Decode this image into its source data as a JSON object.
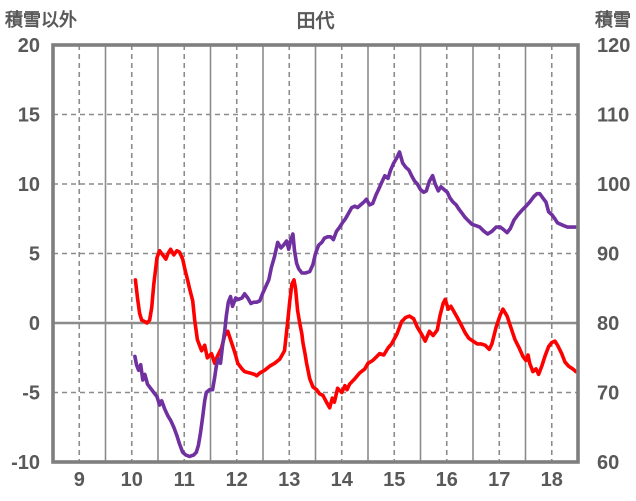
{
  "header": {
    "title": "田代",
    "left_axis_title": "積雪以外",
    "right_axis_title": "積雪"
  },
  "colors": {
    "non_snow_line": "#ff0000",
    "snow_line": "#7030a0",
    "grid": "#8c8c8c",
    "border": "#7f7f7f",
    "text": "#595959",
    "background": "#ffffff"
  },
  "chart_data": {
    "type": "line",
    "title": "田代",
    "x_axis": {
      "min": 8.5,
      "max": 18.5,
      "tick_labels": [
        "9",
        "10",
        "11",
        "12",
        "13",
        "14",
        "15",
        "16",
        "17",
        "18"
      ],
      "tick_positions": [
        9,
        10,
        11,
        12,
        13,
        14,
        15,
        16,
        17,
        18
      ],
      "solid_gridlines": [
        9.5,
        10.5,
        11.5,
        12.5,
        13.5,
        14.5,
        15.5,
        16.5,
        17.5
      ],
      "dashed_gridlines": [
        9,
        10,
        11,
        12,
        13,
        14,
        15,
        16,
        17,
        18
      ]
    },
    "left_axis": {
      "label": "積雪以外",
      "min": -10,
      "max": 20,
      "ticks": [
        20,
        15,
        10,
        5,
        0,
        -5,
        -10
      ],
      "dashed_gridlines": [
        15,
        10,
        5,
        -5
      ],
      "solid_gridlines": [
        0
      ]
    },
    "right_axis": {
      "label": "積雪",
      "min": 60,
      "max": 120,
      "ticks": [
        120,
        110,
        100,
        90,
        80,
        70,
        60
      ]
    },
    "grid": true,
    "legend": "none",
    "series": [
      {
        "name": "積雪以外",
        "axis": "left",
        "color": "#ff0000",
        "points": [
          [
            10.07,
            3.1
          ],
          [
            10.11,
            1.8
          ],
          [
            10.15,
            0.7
          ],
          [
            10.19,
            0.2
          ],
          [
            10.25,
            0.1
          ],
          [
            10.29,
            0.0
          ],
          [
            10.34,
            0.2
          ],
          [
            10.38,
            1.1
          ],
          [
            10.42,
            2.8
          ],
          [
            10.48,
            4.7
          ],
          [
            10.53,
            5.2
          ],
          [
            10.59,
            4.9
          ],
          [
            10.65,
            4.6
          ],
          [
            10.69,
            5.0
          ],
          [
            10.74,
            5.3
          ],
          [
            10.8,
            4.9
          ],
          [
            10.86,
            5.2
          ],
          [
            10.91,
            5.1
          ],
          [
            10.97,
            4.6
          ],
          [
            11.01,
            3.9
          ],
          [
            11.07,
            3.0
          ],
          [
            11.1,
            2.5
          ],
          [
            11.16,
            1.6
          ],
          [
            11.2,
            0.2
          ],
          [
            11.25,
            -1.2
          ],
          [
            11.33,
            -2.0
          ],
          [
            11.39,
            -1.6
          ],
          [
            11.44,
            -2.5
          ],
          [
            11.52,
            -2.2
          ],
          [
            11.58,
            -2.9
          ],
          [
            11.63,
            -2.4
          ],
          [
            11.71,
            -1.8
          ],
          [
            11.77,
            -0.9
          ],
          [
            11.83,
            -0.6
          ],
          [
            11.9,
            -1.4
          ],
          [
            11.96,
            -2.1
          ],
          [
            12.02,
            -2.9
          ],
          [
            12.1,
            -3.3
          ],
          [
            12.15,
            -3.5
          ],
          [
            12.25,
            -3.6
          ],
          [
            12.34,
            -3.7
          ],
          [
            12.38,
            -3.8
          ],
          [
            12.44,
            -3.6
          ],
          [
            12.53,
            -3.4
          ],
          [
            12.63,
            -3.1
          ],
          [
            12.72,
            -2.9
          ],
          [
            12.82,
            -2.6
          ],
          [
            12.91,
            -2.0
          ],
          [
            12.97,
            0.1
          ],
          [
            13.01,
            1.6
          ],
          [
            13.05,
            2.8
          ],
          [
            13.09,
            3.1
          ],
          [
            13.12,
            2.5
          ],
          [
            13.16,
            0.9
          ],
          [
            13.2,
            0.0
          ],
          [
            13.24,
            -0.8
          ],
          [
            13.26,
            -1.4
          ],
          [
            13.3,
            -2.2
          ],
          [
            13.33,
            -2.9
          ],
          [
            13.39,
            -4.0
          ],
          [
            13.45,
            -4.6
          ],
          [
            13.52,
            -4.8
          ],
          [
            13.58,
            -5.1
          ],
          [
            13.64,
            -5.2
          ],
          [
            13.71,
            -5.7
          ],
          [
            13.77,
            -6.1
          ],
          [
            13.82,
            -5.4
          ],
          [
            13.86,
            -5.7
          ],
          [
            13.92,
            -4.7
          ],
          [
            14.0,
            -5.0
          ],
          [
            14.06,
            -4.5
          ],
          [
            14.1,
            -4.8
          ],
          [
            14.15,
            -4.4
          ],
          [
            14.25,
            -4.0
          ],
          [
            14.34,
            -3.6
          ],
          [
            14.44,
            -3.3
          ],
          [
            14.5,
            -2.9
          ],
          [
            14.59,
            -2.7
          ],
          [
            14.67,
            -2.4
          ],
          [
            14.72,
            -2.2
          ],
          [
            14.8,
            -2.3
          ],
          [
            14.88,
            -1.8
          ],
          [
            14.95,
            -1.5
          ],
          [
            15.05,
            -0.8
          ],
          [
            15.14,
            0.1
          ],
          [
            15.22,
            0.4
          ],
          [
            15.29,
            0.5
          ],
          [
            15.37,
            0.3
          ],
          [
            15.44,
            -0.3
          ],
          [
            15.52,
            -0.8
          ],
          [
            15.59,
            -1.3
          ],
          [
            15.67,
            -0.6
          ],
          [
            15.74,
            -0.9
          ],
          [
            15.82,
            -0.5
          ],
          [
            15.87,
            0.5
          ],
          [
            15.93,
            1.4
          ],
          [
            15.97,
            1.7
          ],
          [
            16.03,
            1.0
          ],
          [
            16.08,
            1.2
          ],
          [
            16.14,
            0.8
          ],
          [
            16.2,
            0.4
          ],
          [
            16.27,
            -0.1
          ],
          [
            16.35,
            -0.7
          ],
          [
            16.42,
            -1.1
          ],
          [
            16.5,
            -1.3
          ],
          [
            16.58,
            -1.5
          ],
          [
            16.65,
            -1.5
          ],
          [
            16.73,
            -1.6
          ],
          [
            16.81,
            -1.9
          ],
          [
            16.86,
            -1.5
          ],
          [
            16.94,
            -0.3
          ],
          [
            17.02,
            0.6
          ],
          [
            17.07,
            1.0
          ],
          [
            17.15,
            0.5
          ],
          [
            17.22,
            -0.3
          ],
          [
            17.3,
            -1.2
          ],
          [
            17.38,
            -1.8
          ],
          [
            17.45,
            -2.4
          ],
          [
            17.51,
            -2.7
          ],
          [
            17.55,
            -2.3
          ],
          [
            17.58,
            -2.9
          ],
          [
            17.64,
            -3.5
          ],
          [
            17.7,
            -3.3
          ],
          [
            17.75,
            -3.7
          ],
          [
            17.81,
            -3.1
          ],
          [
            17.87,
            -2.4
          ],
          [
            17.94,
            -1.7
          ],
          [
            18.0,
            -1.4
          ],
          [
            18.06,
            -1.3
          ],
          [
            18.11,
            -1.6
          ],
          [
            18.19,
            -2.2
          ],
          [
            18.25,
            -2.8
          ],
          [
            18.32,
            -3.1
          ],
          [
            18.4,
            -3.3
          ],
          [
            18.46,
            -3.5
          ]
        ]
      },
      {
        "name": "積雪",
        "axis": "right",
        "color": "#7030a0",
        "points": [
          [
            10.06,
            75.2
          ],
          [
            10.09,
            74.0
          ],
          [
            10.13,
            73.2
          ],
          [
            10.17,
            74.0
          ],
          [
            10.21,
            71.8
          ],
          [
            10.25,
            72.6
          ],
          [
            10.3,
            71.2
          ],
          [
            10.36,
            70.6
          ],
          [
            10.42,
            70.0
          ],
          [
            10.48,
            69.4
          ],
          [
            10.53,
            68.2
          ],
          [
            10.57,
            68.8
          ],
          [
            10.63,
            67.6
          ],
          [
            10.69,
            66.6
          ],
          [
            10.74,
            66.0
          ],
          [
            10.8,
            65.0
          ],
          [
            10.86,
            63.8
          ],
          [
            10.91,
            62.6
          ],
          [
            10.97,
            61.4
          ],
          [
            11.03,
            61.0
          ],
          [
            11.1,
            60.8
          ],
          [
            11.18,
            61.0
          ],
          [
            11.23,
            61.4
          ],
          [
            11.27,
            62.4
          ],
          [
            11.31,
            64.2
          ],
          [
            11.35,
            66.4
          ],
          [
            11.39,
            68.8
          ],
          [
            11.42,
            70.0
          ],
          [
            11.48,
            70.4
          ],
          [
            11.54,
            70.4
          ],
          [
            11.58,
            72.2
          ],
          [
            11.61,
            73.8
          ],
          [
            11.65,
            74.8
          ],
          [
            11.69,
            74.2
          ],
          [
            11.73,
            76.8
          ],
          [
            11.77,
            78.8
          ],
          [
            11.8,
            81.0
          ],
          [
            11.84,
            83.0
          ],
          [
            11.88,
            83.8
          ],
          [
            11.92,
            82.4
          ],
          [
            11.98,
            83.6
          ],
          [
            12.03,
            83.4
          ],
          [
            12.1,
            83.6
          ],
          [
            12.15,
            84.2
          ],
          [
            12.21,
            83.6
          ],
          [
            12.27,
            82.8
          ],
          [
            12.32,
            83.0
          ],
          [
            12.38,
            83.0
          ],
          [
            12.44,
            83.2
          ],
          [
            12.49,
            84.2
          ],
          [
            12.55,
            85.2
          ],
          [
            12.61,
            86.2
          ],
          [
            12.66,
            88.0
          ],
          [
            12.72,
            89.6
          ],
          [
            12.78,
            91.6
          ],
          [
            12.84,
            90.8
          ],
          [
            12.89,
            91.2
          ],
          [
            12.95,
            91.8
          ],
          [
            12.99,
            90.6
          ],
          [
            13.03,
            92.0
          ],
          [
            13.07,
            92.8
          ],
          [
            13.1,
            90.4
          ],
          [
            13.14,
            88.6
          ],
          [
            13.18,
            87.8
          ],
          [
            13.24,
            87.2
          ],
          [
            13.31,
            87.2
          ],
          [
            13.39,
            87.4
          ],
          [
            13.45,
            88.4
          ],
          [
            13.5,
            90.0
          ],
          [
            13.56,
            91.2
          ],
          [
            13.62,
            91.6
          ],
          [
            13.67,
            92.2
          ],
          [
            13.73,
            92.4
          ],
          [
            13.79,
            92.4
          ],
          [
            13.84,
            92.0
          ],
          [
            13.9,
            93.2
          ],
          [
            13.96,
            93.8
          ],
          [
            14.01,
            94.4
          ],
          [
            14.07,
            95.0
          ],
          [
            14.13,
            95.8
          ],
          [
            14.19,
            96.6
          ],
          [
            14.25,
            96.8
          ],
          [
            14.3,
            96.6
          ],
          [
            14.36,
            97.0
          ],
          [
            14.42,
            97.4
          ],
          [
            14.47,
            97.8
          ],
          [
            14.53,
            97.0
          ],
          [
            14.59,
            97.2
          ],
          [
            14.65,
            98.4
          ],
          [
            14.7,
            99.2
          ],
          [
            14.76,
            100.2
          ],
          [
            14.82,
            101.2
          ],
          [
            14.88,
            100.8
          ],
          [
            14.93,
            102.0
          ],
          [
            14.99,
            103.0
          ],
          [
            15.05,
            103.8
          ],
          [
            15.1,
            104.6
          ],
          [
            15.16,
            103.0
          ],
          [
            15.22,
            102.4
          ],
          [
            15.28,
            102.0
          ],
          [
            15.33,
            101.2
          ],
          [
            15.39,
            100.4
          ],
          [
            15.44,
            100.0
          ],
          [
            15.5,
            99.2
          ],
          [
            15.56,
            98.8
          ],
          [
            15.61,
            99.0
          ],
          [
            15.67,
            100.4
          ],
          [
            15.73,
            101.2
          ],
          [
            15.78,
            100.0
          ],
          [
            15.84,
            99.0
          ],
          [
            15.89,
            99.6
          ],
          [
            15.95,
            99.2
          ],
          [
            16.01,
            98.8
          ],
          [
            16.06,
            98.0
          ],
          [
            16.12,
            97.4
          ],
          [
            16.18,
            97.0
          ],
          [
            16.23,
            96.4
          ],
          [
            16.29,
            95.8
          ],
          [
            16.35,
            95.2
          ],
          [
            16.4,
            94.8
          ],
          [
            16.48,
            94.2
          ],
          [
            16.56,
            94.0
          ],
          [
            16.63,
            93.8
          ],
          [
            16.71,
            93.2
          ],
          [
            16.78,
            92.8
          ],
          [
            16.86,
            93.2
          ],
          [
            16.94,
            93.8
          ],
          [
            17.02,
            93.8
          ],
          [
            17.09,
            93.4
          ],
          [
            17.15,
            93.0
          ],
          [
            17.21,
            93.6
          ],
          [
            17.28,
            94.8
          ],
          [
            17.36,
            95.6
          ],
          [
            17.43,
            96.2
          ],
          [
            17.51,
            96.8
          ],
          [
            17.58,
            97.4
          ],
          [
            17.66,
            98.2
          ],
          [
            17.72,
            98.6
          ],
          [
            17.77,
            98.6
          ],
          [
            17.83,
            98.0
          ],
          [
            17.89,
            97.4
          ],
          [
            17.94,
            96.0
          ],
          [
            18.0,
            95.6
          ],
          [
            18.06,
            95.0
          ],
          [
            18.11,
            94.4
          ],
          [
            18.17,
            94.2
          ],
          [
            18.23,
            94.0
          ],
          [
            18.3,
            93.8
          ],
          [
            18.38,
            93.8
          ],
          [
            18.46,
            93.8
          ]
        ]
      }
    ]
  }
}
